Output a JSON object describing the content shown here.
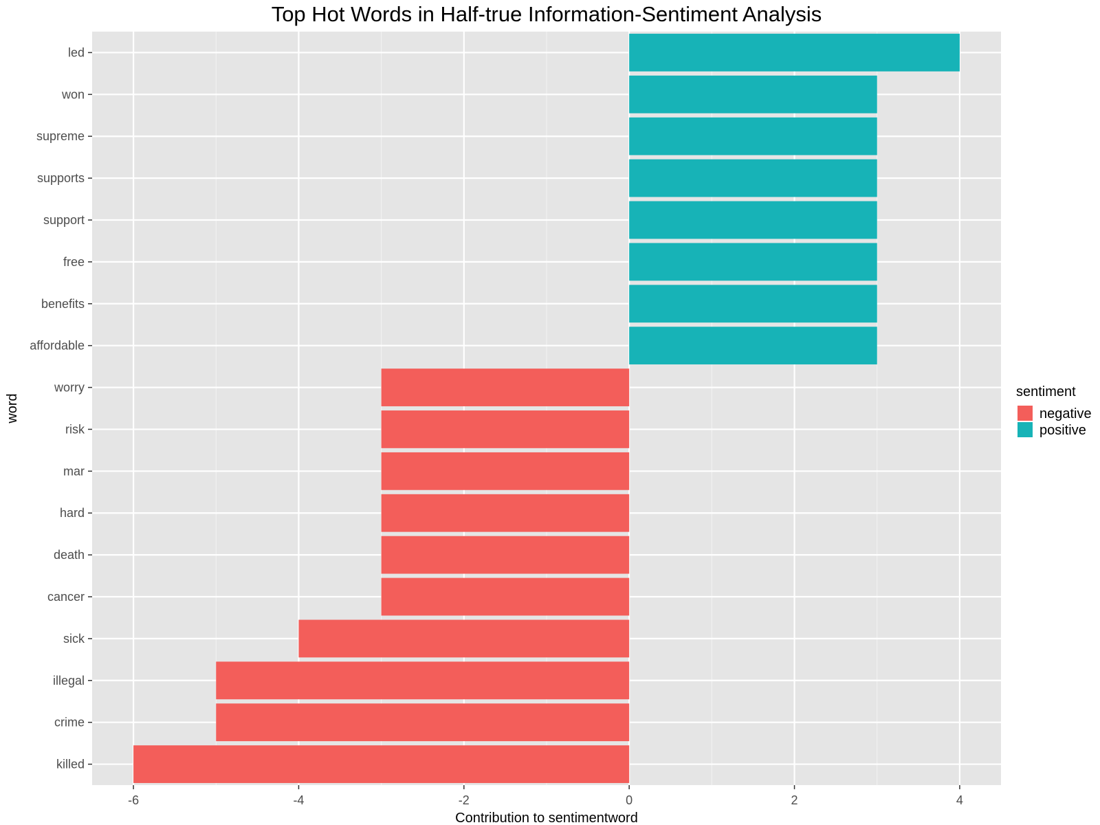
{
  "chart_data": {
    "type": "bar",
    "orientation": "horizontal",
    "title": "Top Hot Words in Half-true Information-Sentiment Analysis",
    "xlabel": "Contribution to sentimentword",
    "ylabel": "word",
    "xlim": [
      -6.5,
      4.5
    ],
    "xticks": [
      -6,
      -4,
      -2,
      0,
      2,
      4
    ],
    "grid": true,
    "legend": {
      "title": "sentiment",
      "position": "right",
      "entries": [
        {
          "label": "negative",
          "color": "#F35E5A"
        },
        {
          "label": "positive",
          "color": "#17B3B7"
        }
      ]
    },
    "categories": [
      "led",
      "won",
      "supreme",
      "supports",
      "support",
      "free",
      "benefits",
      "affordable",
      "worry",
      "risk",
      "mar",
      "hard",
      "death",
      "cancer",
      "sick",
      "illegal",
      "crime",
      "killed"
    ],
    "values": [
      4,
      3,
      3,
      3,
      3,
      3,
      3,
      3,
      -3,
      -3,
      -3,
      -3,
      -3,
      -3,
      -4,
      -5,
      -5,
      -6
    ],
    "sentiment": [
      "positive",
      "positive",
      "positive",
      "positive",
      "positive",
      "positive",
      "positive",
      "positive",
      "negative",
      "negative",
      "negative",
      "negative",
      "negative",
      "negative",
      "negative",
      "negative",
      "negative",
      "negative"
    ]
  }
}
